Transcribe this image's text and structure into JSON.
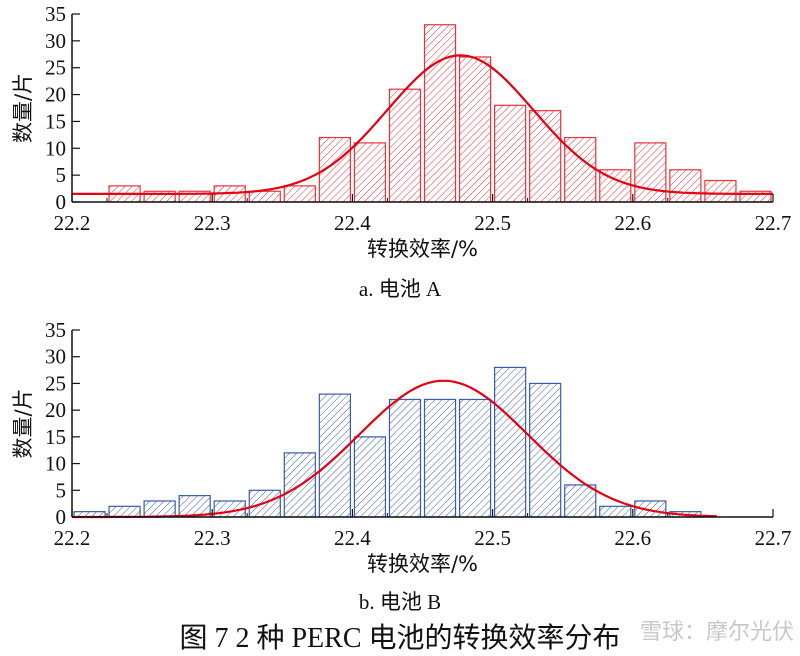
{
  "figure_caption": "图 7  2 种 PERC 电池的转换效率分布",
  "watermark": "雪球：摩尔光伏",
  "chart_data": [
    {
      "type": "bar",
      "subtitle": "a. 电池 A",
      "xlabel": "转换效率/%",
      "ylabel": "数量/片",
      "xlim": [
        22.2,
        22.7
      ],
      "ylim": [
        0,
        35
      ],
      "xticks": [
        "22.2",
        "22.3",
        "22.4",
        "22.5",
        "22.6",
        "22.7"
      ],
      "yticks": [
        "0",
        "5",
        "10",
        "15",
        "20",
        "25",
        "30",
        "35"
      ],
      "bin_width": 0.025,
      "bin_starts": [
        22.225,
        22.25,
        22.275,
        22.3,
        22.325,
        22.35,
        22.375,
        22.4,
        22.425,
        22.45,
        22.475,
        22.5,
        22.525,
        22.55,
        22.575,
        22.6,
        22.625,
        22.65,
        22.675
      ],
      "values": [
        3,
        2,
        2,
        3,
        2,
        3,
        12,
        11,
        21,
        33,
        27,
        18,
        17,
        12,
        6,
        11,
        6,
        4,
        2
      ],
      "bar_color": "#e8333a",
      "fit_curve": {
        "type": "normal",
        "color": "#e60012",
        "mean": 22.477,
        "peak": 27.3,
        "baseline": 1.5,
        "sigma": 0.052,
        "x_range": [
          22.2,
          22.7
        ]
      },
      "grid": false
    },
    {
      "type": "bar",
      "subtitle": "b. 电池 B",
      "xlabel": "转换效率/%",
      "ylabel": "数量/片",
      "xlim": [
        22.2,
        22.7
      ],
      "ylim": [
        0,
        35
      ],
      "xticks": [
        "22.2",
        "22.3",
        "22.4",
        "22.5",
        "22.6",
        "22.7"
      ],
      "yticks": [
        "0",
        "5",
        "10",
        "15",
        "20",
        "25",
        "30",
        "35"
      ],
      "bin_width": 0.025,
      "bin_starts": [
        22.2,
        22.225,
        22.25,
        22.275,
        22.3,
        22.325,
        22.35,
        22.375,
        22.4,
        22.425,
        22.45,
        22.475,
        22.5,
        22.525,
        22.55,
        22.575,
        22.6,
        22.625
      ],
      "values": [
        1,
        2,
        3,
        4,
        3,
        5,
        12,
        23,
        15,
        22,
        22,
        22,
        28,
        25,
        6,
        2,
        3,
        1
      ],
      "bar_color": "#3a5ca8",
      "fit_curve": {
        "type": "normal",
        "color": "#e60012",
        "mean": 22.465,
        "peak": 25.5,
        "baseline": 0,
        "sigma": 0.06,
        "x_range": [
          22.2,
          22.66
        ]
      },
      "grid": false
    }
  ]
}
